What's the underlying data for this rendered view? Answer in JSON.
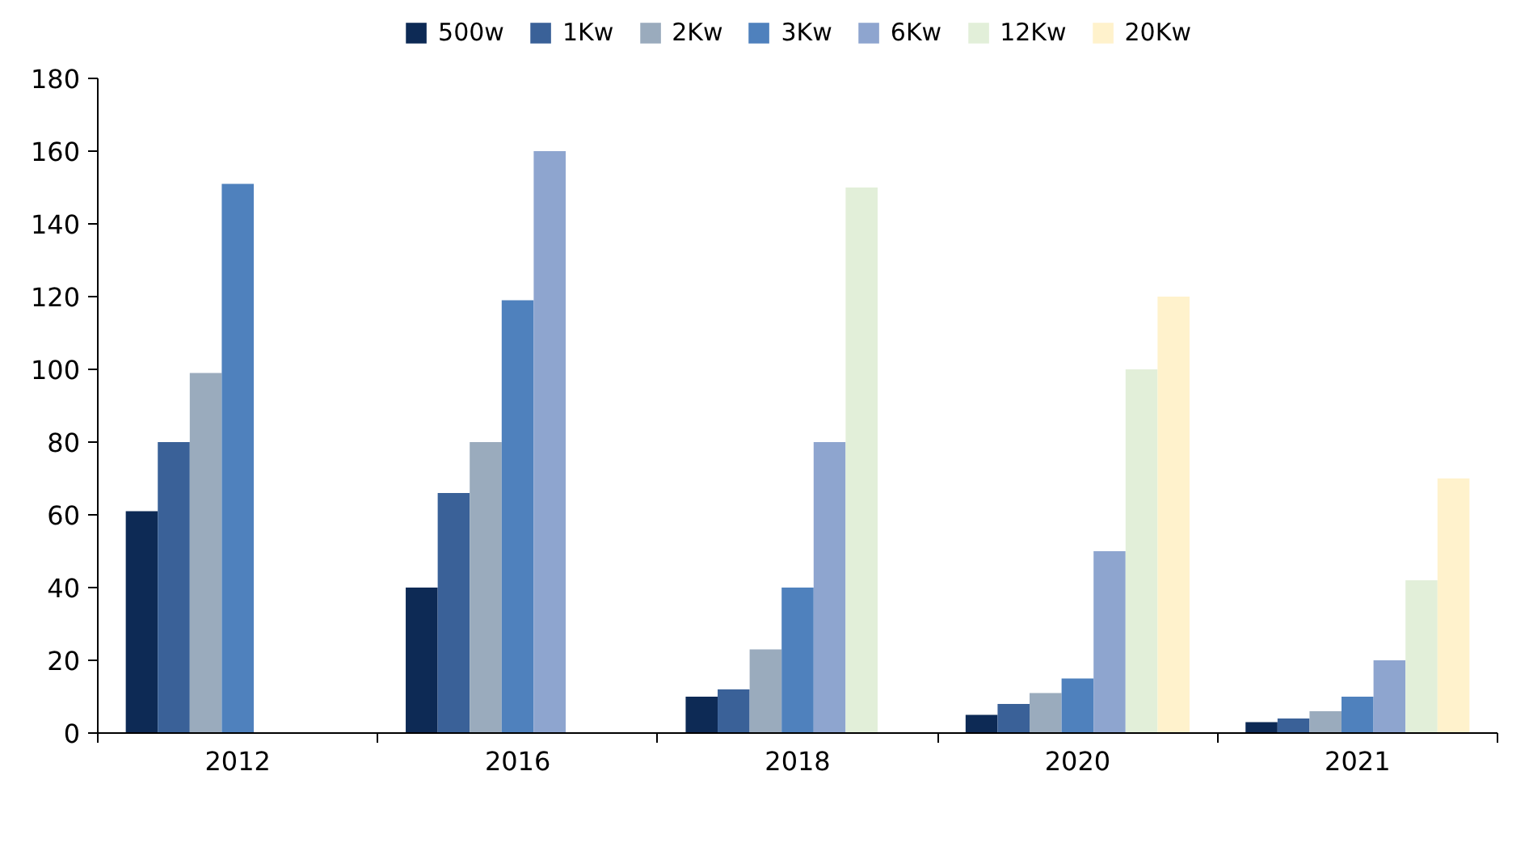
{
  "chart_data": {
    "type": "bar",
    "categories": [
      "2012",
      "2016",
      "2018",
      "2020",
      "2021"
    ],
    "ylim": [
      0,
      180
    ],
    "yticks": [
      0,
      20,
      40,
      60,
      80,
      100,
      120,
      140,
      160,
      180
    ],
    "grid": false,
    "legend": "top",
    "series": [
      {
        "name": "500w",
        "color": "#0d2a55",
        "values": [
          61,
          40,
          10,
          5,
          3
        ]
      },
      {
        "name": "1Kw",
        "color": "#3a6198",
        "values": [
          80,
          66,
          12,
          8,
          4
        ]
      },
      {
        "name": "2Kw",
        "color": "#9aabbd",
        "values": [
          99,
          80,
          23,
          11,
          6
        ]
      },
      {
        "name": "3Kw",
        "color": "#4f81bd",
        "values": [
          151,
          119,
          40,
          15,
          10
        ]
      },
      {
        "name": "6Kw",
        "color": "#8ea5cf",
        "values": [
          null,
          160,
          80,
          50,
          20
        ]
      },
      {
        "name": "12Kw",
        "color": "#e2efd9",
        "values": [
          null,
          null,
          150,
          100,
          42
        ]
      },
      {
        "name": "20Kw",
        "color": "#fff2cc",
        "values": [
          null,
          null,
          null,
          120,
          70
        ]
      }
    ]
  }
}
